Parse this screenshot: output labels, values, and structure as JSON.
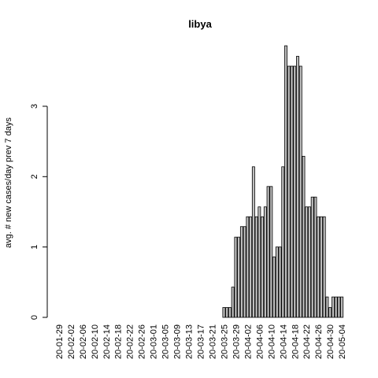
{
  "chart_data": {
    "type": "bar",
    "title": "libya",
    "ylabel": "avg. # new cases/day prev  7  days",
    "xlabel": "",
    "ylim": [
      0,
      3.85
    ],
    "yticks": [
      0,
      1,
      2,
      3
    ],
    "x_tick_labels": [
      "20-01-29",
      "20-02-02",
      "20-02-06",
      "20-02-10",
      "20-02-14",
      "20-02-18",
      "20-02-22",
      "20-02-26",
      "20-03-01",
      "20-03-05",
      "20-03-09",
      "20-03-13",
      "20-03-17",
      "20-03-21",
      "20-03-25",
      "20-03-29",
      "20-04-02",
      "20-04-06",
      "20-04-10",
      "20-04-14",
      "20-04-18",
      "20-04-22",
      "20-04-26",
      "20-04-30",
      "20-05-04"
    ],
    "categories": [
      "20-01-29",
      "20-01-30",
      "20-01-31",
      "20-02-01",
      "20-02-02",
      "20-02-03",
      "20-02-04",
      "20-02-05",
      "20-02-06",
      "20-02-07",
      "20-02-08",
      "20-02-09",
      "20-02-10",
      "20-02-11",
      "20-02-12",
      "20-02-13",
      "20-02-14",
      "20-02-15",
      "20-02-16",
      "20-02-17",
      "20-02-18",
      "20-02-19",
      "20-02-20",
      "20-02-21",
      "20-02-22",
      "20-02-23",
      "20-02-24",
      "20-02-25",
      "20-02-26",
      "20-02-27",
      "20-02-28",
      "20-02-29",
      "20-03-01",
      "20-03-02",
      "20-03-03",
      "20-03-04",
      "20-03-05",
      "20-03-06",
      "20-03-07",
      "20-03-08",
      "20-03-09",
      "20-03-10",
      "20-03-11",
      "20-03-12",
      "20-03-13",
      "20-03-14",
      "20-03-15",
      "20-03-16",
      "20-03-17",
      "20-03-18",
      "20-03-19",
      "20-03-20",
      "20-03-21",
      "20-03-22",
      "20-03-23",
      "20-03-24",
      "20-03-25",
      "20-03-26",
      "20-03-27",
      "20-03-28",
      "20-03-29",
      "20-03-30",
      "20-03-31",
      "20-04-01",
      "20-04-02",
      "20-04-03",
      "20-04-04",
      "20-04-05",
      "20-04-06",
      "20-04-07",
      "20-04-08",
      "20-04-09",
      "20-04-10",
      "20-04-11",
      "20-04-12",
      "20-04-13",
      "20-04-14",
      "20-04-15",
      "20-04-16",
      "20-04-17",
      "20-04-18",
      "20-04-19",
      "20-04-20",
      "20-04-21",
      "20-04-22",
      "20-04-23",
      "20-04-24",
      "20-04-25",
      "20-04-26",
      "20-04-27",
      "20-04-28",
      "20-04-29",
      "20-04-30",
      "20-05-01",
      "20-05-02",
      "20-05-03",
      "20-05-04"
    ],
    "values": [
      0,
      0,
      0,
      0,
      0,
      0,
      0,
      0,
      0,
      0,
      0,
      0,
      0,
      0,
      0,
      0,
      0,
      0,
      0,
      0,
      0,
      0,
      0,
      0,
      0,
      0,
      0,
      0,
      0,
      0,
      0,
      0,
      0,
      0,
      0,
      0,
      0,
      0,
      0,
      0,
      0,
      0,
      0,
      0,
      0,
      0,
      0,
      0,
      0,
      0,
      0,
      0,
      0,
      0,
      0,
      0,
      0.14,
      0.14,
      0.14,
      0.43,
      1.14,
      1.14,
      1.29,
      1.29,
      1.43,
      1.43,
      2.14,
      1.43,
      1.57,
      1.43,
      1.57,
      1.86,
      1.86,
      0.86,
      1.0,
      1.0,
      2.14,
      3.86,
      3.57,
      3.57,
      3.57,
      3.71,
      3.57,
      2.29,
      1.57,
      1.57,
      1.71,
      1.71,
      1.43,
      1.43,
      1.43,
      0.29,
      0.14,
      0.29,
      0.29,
      0.29,
      0.29
    ]
  }
}
